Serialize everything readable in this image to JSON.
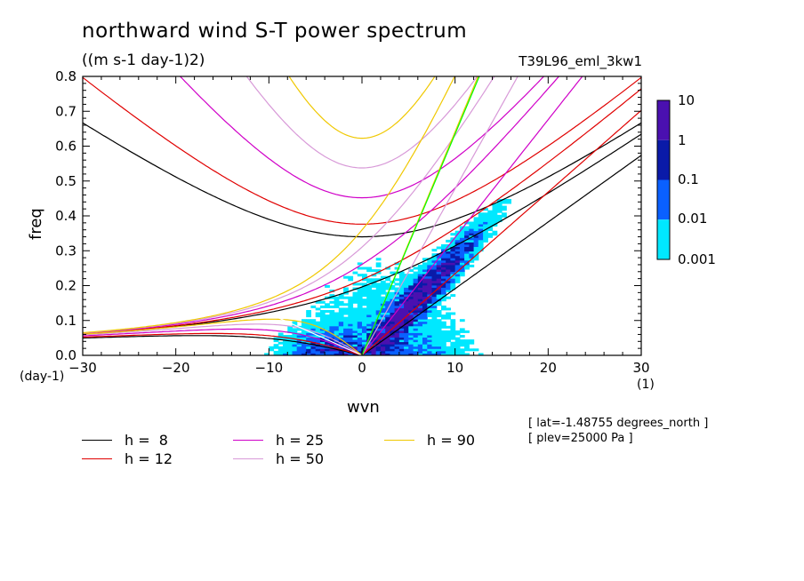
{
  "title": "northward wind S-T power spectrum",
  "subtitle": "((m s-1 day-1)2)",
  "run_label": "T39L96_eml_3kw1",
  "axis_units": {
    "y_unit": "(day-1)",
    "x_unit": "(1)"
  },
  "meta": [
    "[ lat=-1.48755 degrees_north ]",
    "[ plev=25000 Pa ]"
  ],
  "legend": [
    {
      "label": "h =  8",
      "color": "#000000"
    },
    {
      "label": "h = 12",
      "color": "#e00000"
    },
    {
      "label": "h = 25",
      "color": "#d000c8"
    },
    {
      "label": "h = 50",
      "color": "#d89ad8"
    },
    {
      "label": "h = 90",
      "color": "#f0c800"
    }
  ],
  "colorbar": {
    "labels": [
      "10",
      "1",
      "0.1",
      "0.01",
      "0.001"
    ],
    "colors": [
      "#4a10b0",
      "#0a1aa8",
      "#0a60ff",
      "#00e8ff"
    ]
  },
  "chart_data": {
    "type": "heatmap",
    "xlabel": "wvn",
    "ylabel": "freq",
    "xlim": [
      -30,
      30
    ],
    "ylim": [
      0,
      0.8
    ],
    "xticks": [
      "-30",
      "-20",
      "-10",
      "0",
      "10",
      "20",
      "30"
    ],
    "yticks": [
      "0.0",
      "0.1",
      "0.2",
      "0.3",
      "0.4",
      "0.5",
      "0.6",
      "0.7",
      "0.8"
    ],
    "colorbar_levels": [
      0.001,
      0.01,
      0.1,
      1,
      10
    ],
    "dispersion_curves": [
      {
        "h": 8,
        "color": "#000000"
      },
      {
        "h": 12,
        "color": "#e00000"
      },
      {
        "h": 25,
        "color": "#d000c8"
      },
      {
        "h": 50,
        "color": "#d89ad8"
      },
      {
        "h": 90,
        "color": "#f0c800"
      }
    ],
    "reference_lines": [
      {
        "color": "#00ff00",
        "points": [
          [
            0,
            0
          ],
          [
            12.6,
            0.8
          ]
        ]
      },
      {
        "color": "#ffffff",
        "points": [
          [
            0,
            0
          ],
          [
            -10,
            0.12
          ]
        ]
      }
    ]
  }
}
